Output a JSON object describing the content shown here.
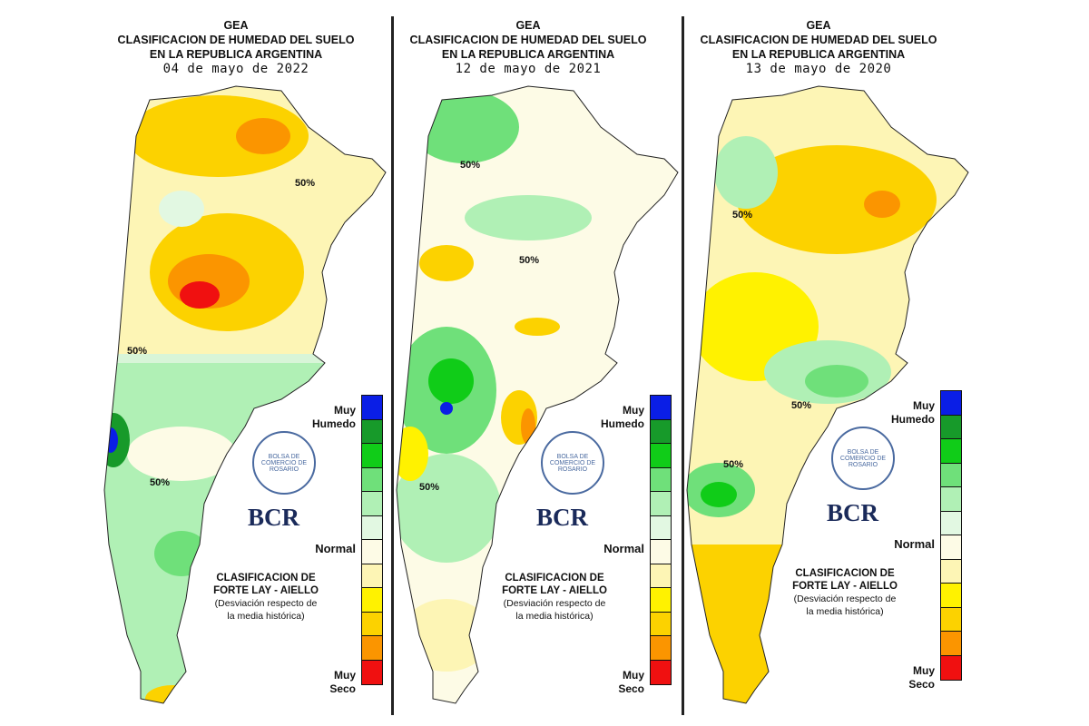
{
  "panels": [
    {
      "title_1": "GEA",
      "title_2": "CLASIFICACION DE HUMEDAD DEL SUELO",
      "title_3": "EN LA REPUBLICA ARGENTINA",
      "date": "04 de mayo de 2022",
      "contour_label": "50%"
    },
    {
      "title_1": "GEA",
      "title_2": "CLASIFICACION DE HUMEDAD DEL SUELO",
      "title_3": "EN LA REPUBLICA ARGENTINA",
      "date": "12 de mayo de 2021",
      "contour_label": "50%"
    },
    {
      "title_1": "GEA",
      "title_2": "CLASIFICACION DE HUMEDAD DEL SUELO",
      "title_3": "EN LA REPUBLICA ARGENTINA",
      "date": "13 de mayo de 2020",
      "contour_label": "50%"
    }
  ],
  "legend": {
    "top_label_1": "Muy",
    "top_label_2": "Humedo",
    "mid_label": "Normal",
    "bottom_label_1": "Muy",
    "bottom_label_2": "Seco",
    "colors": [
      "#0a1ee6",
      "#179a2a",
      "#10cc18",
      "#6fe07a",
      "#b0f0b5",
      "#e2f8e2",
      "#fdfbe6",
      "#fdf5b5",
      "#fff200",
      "#fcd200",
      "#fb9500",
      "#f01010"
    ]
  },
  "logo": {
    "text": "BOLSA DE COMERCIO DE ROSARIO",
    "brand": "BCR"
  },
  "classification": {
    "line_1": "CLASIFICACION DE",
    "line_2": "FORTE LAY - AIELLO",
    "line_3": "(Desviación respecto de",
    "line_4": "la media histórica)"
  }
}
